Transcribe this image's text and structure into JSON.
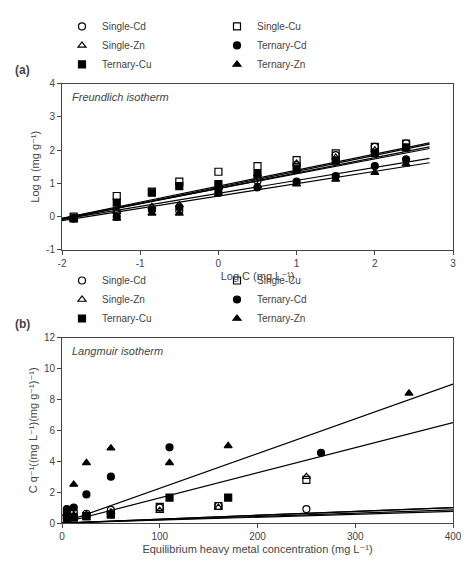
{
  "chart_data": [
    {
      "type": "scatter",
      "title": "Freundlich isotherm",
      "xlabel": "Log C (mg L⁻¹)",
      "ylabel": "Log q (mg g⁻¹)",
      "annotations": [
        "(a)"
      ],
      "xlim": [
        -2,
        3
      ],
      "ylim": [
        -1,
        4
      ],
      "xticks": [
        -2,
        -1,
        0,
        1,
        2,
        3
      ],
      "yticks": [
        -1,
        0,
        1,
        2,
        3,
        4
      ],
      "grid": false,
      "legend": "top",
      "series": [
        {
          "name": "Single-Cd",
          "marker": "circle-open",
          "color": "black",
          "x": [
            -1.85,
            -1.3,
            -0.85,
            -0.5,
            0.0,
            0.5,
            1.0,
            1.5,
            2.0,
            2.4
          ],
          "values": [
            -0.05,
            0.15,
            0.22,
            0.18,
            0.82,
            1.08,
            1.55,
            1.85,
            2.1,
            2.2
          ]
        },
        {
          "name": "Single-Cu",
          "marker": "square-open",
          "color": "black",
          "x": [
            -1.85,
            -1.3,
            -0.85,
            -0.5,
            0.0,
            0.5,
            1.0,
            1.5,
            2.0,
            2.4
          ],
          "values": [
            0.0,
            0.62,
            0.75,
            1.05,
            1.35,
            1.52,
            1.7,
            1.9,
            2.1,
            2.2
          ]
        },
        {
          "name": "Single-Zn",
          "marker": "triangle-up-open",
          "color": "black",
          "x": [
            -1.85,
            -1.3,
            -0.85,
            -0.5,
            0.0,
            0.5,
            1.0,
            1.5,
            2.0,
            2.4
          ],
          "values": [
            -0.05,
            0.15,
            0.3,
            0.35,
            0.88,
            1.28,
            1.6,
            1.78,
            2.0,
            2.05
          ]
        },
        {
          "name": "Ternary-Cd",
          "marker": "circle",
          "color": "black",
          "x": [
            -1.85,
            -1.3,
            -0.85,
            -0.5,
            0.0,
            0.5,
            1.0,
            1.5,
            2.0,
            2.4
          ],
          "values": [
            -0.05,
            0.0,
            0.2,
            0.28,
            0.72,
            0.88,
            1.05,
            1.22,
            1.52,
            1.72
          ]
        },
        {
          "name": "Ternary-Cu",
          "marker": "square",
          "color": "black",
          "x": [
            -1.85,
            -1.3,
            -0.85,
            -0.5,
            0.0,
            0.5,
            1.0,
            1.5,
            2.0,
            2.4
          ],
          "values": [
            -0.05,
            0.42,
            0.72,
            0.92,
            0.98,
            1.28,
            1.42,
            1.68,
            1.92,
            2.08
          ]
        },
        {
          "name": "Ternary-Zn",
          "marker": "triangle-up",
          "color": "black",
          "x": [
            -1.85,
            -1.3,
            -0.85,
            -0.5,
            0.0,
            0.5,
            1.0,
            1.5,
            2.0,
            2.4
          ],
          "values": [
            -0.1,
            -0.05,
            0.1,
            0.1,
            0.68,
            0.92,
            0.98,
            1.12,
            1.32,
            1.58
          ]
        },
        {
          "type": "line",
          "color": "black",
          "x": [
            -2.0,
            2.7
          ],
          "values": [
            -0.08,
            2.18
          ]
        },
        {
          "type": "line",
          "color": "black",
          "x": [
            -2.0,
            2.7
          ],
          "values": [
            -0.05,
            2.22
          ]
        },
        {
          "type": "line",
          "color": "black",
          "x": [
            -2.0,
            2.7
          ],
          "values": [
            -0.08,
            2.1
          ]
        },
        {
          "type": "line",
          "color": "black",
          "x": [
            -2.0,
            2.7
          ],
          "values": [
            -0.08,
            1.75
          ]
        },
        {
          "type": "line",
          "color": "black",
          "x": [
            -2.0,
            2.7
          ],
          "values": [
            -0.05,
            2.05
          ]
        },
        {
          "type": "line",
          "color": "black",
          "x": [
            -2.0,
            2.7
          ],
          "values": [
            -0.12,
            1.62
          ]
        }
      ]
    },
    {
      "type": "scatter",
      "title": "Langmuir isotherm",
      "xlabel": "Equilibrium heavy metal concentration (mg L⁻¹)",
      "ylabel": "C q⁻¹((mg L⁻¹)(mg g⁻¹)⁻¹)",
      "annotations": [
        "(b)"
      ],
      "xlim": [
        0,
        400
      ],
      "ylim": [
        0,
        12
      ],
      "xticks": [
        0,
        100,
        200,
        300,
        400
      ],
      "yticks": [
        0,
        2,
        4,
        6,
        8,
        10,
        12
      ],
      "grid": false,
      "legend": "top",
      "series": [
        {
          "name": "Single-Cd",
          "marker": "circle-open",
          "color": "black",
          "x": [
            5,
            12,
            25,
            50,
            100,
            160,
            250
          ],
          "values": [
            0.85,
            0.75,
            0.6,
            0.85,
            1.0,
            1.1,
            0.9
          ]
        },
        {
          "name": "Single-Cu",
          "marker": "square-open",
          "color": "black",
          "x": [
            5,
            12,
            25,
            50,
            100,
            160,
            250
          ],
          "values": [
            0.5,
            0.4,
            0.45,
            0.55,
            1.05,
            1.1,
            2.8
          ]
        },
        {
          "name": "Single-Zn",
          "marker": "triangle-up-open",
          "color": "black",
          "x": [
            5,
            12,
            25,
            50,
            100,
            160,
            250
          ],
          "values": [
            0.6,
            0.5,
            0.55,
            0.7,
            0.8,
            1.0,
            3.0
          ]
        },
        {
          "name": "Ternary-Cd",
          "marker": "circle",
          "color": "black",
          "x": [
            5,
            12,
            25,
            50,
            110,
            265
          ],
          "values": [
            0.9,
            1.0,
            1.85,
            3.0,
            4.9,
            4.55
          ]
        },
        {
          "name": "Ternary-Cu",
          "marker": "square",
          "color": "black",
          "x": [
            5,
            12,
            25,
            50,
            110,
            170
          ],
          "values": [
            0.25,
            0.35,
            0.45,
            0.55,
            1.65,
            1.65
          ]
        },
        {
          "name": "Ternary-Zn",
          "marker": "triangle-up",
          "color": "black",
          "x": [
            5,
            12,
            25,
            50,
            110,
            170,
            355
          ],
          "values": [
            0.6,
            2.5,
            3.9,
            4.85,
            3.9,
            5.0,
            8.4
          ]
        },
        {
          "type": "line",
          "color": "black",
          "x": [
            0,
            400
          ],
          "values": [
            0.0,
            1.0
          ]
        },
        {
          "type": "line",
          "color": "black",
          "x": [
            0,
            400
          ],
          "values": [
            0.0,
            0.85
          ]
        },
        {
          "type": "line",
          "color": "black",
          "x": [
            0,
            400
          ],
          "values": [
            0.0,
            1.0
          ]
        },
        {
          "type": "line",
          "color": "black",
          "x": [
            0,
            400
          ],
          "values": [
            0.0,
            6.5
          ]
        },
        {
          "type": "line",
          "color": "black",
          "x": [
            0,
            400
          ],
          "values": [
            0.0,
            0.75
          ]
        },
        {
          "type": "line",
          "color": "black",
          "x": [
            0,
            400
          ],
          "values": [
            0.0,
            9.0
          ]
        }
      ]
    }
  ]
}
